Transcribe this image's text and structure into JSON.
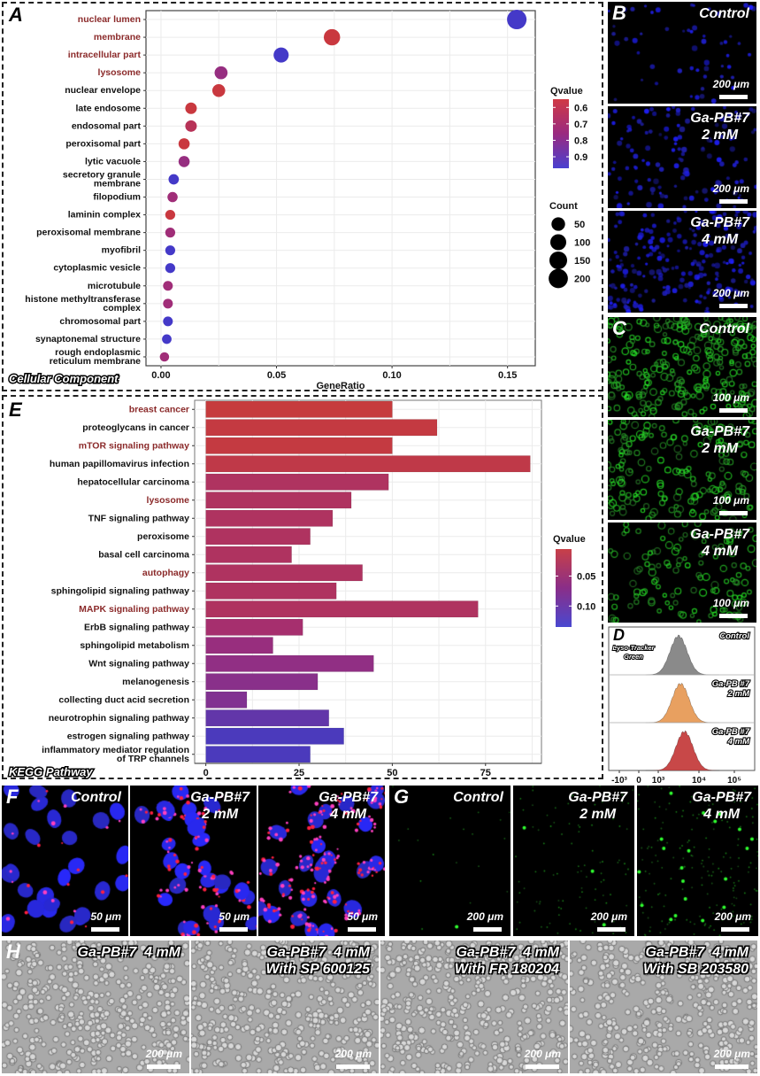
{
  "chart_data": [
    {
      "id": "A",
      "type": "scatter",
      "panel_label": "A",
      "corner_label": "Cellular Component",
      "xlabel": "GeneRatio",
      "ylabel": "",
      "xlim": [
        -0.0065,
        0.162
      ],
      "xticks": [
        0.0,
        0.05,
        0.1,
        0.15
      ],
      "xtick_labels": [
        "0.00",
        "0.05",
        "0.10",
        "0.15"
      ],
      "grid": true,
      "legend_position": "right",
      "color_legend": {
        "title": "Qvalue",
        "ticks": [
          0.6,
          0.7,
          0.8,
          0.9
        ],
        "tick_labels": [
          "0.6",
          "0.7",
          "0.8",
          "0.9"
        ],
        "range": [
          0.55,
          0.97
        ],
        "low_color": "#d03a35",
        "high_color": "#3a3ad0"
      },
      "size_legend": {
        "title": "Count",
        "values": [
          50,
          100,
          150,
          200
        ],
        "labels": [
          "50",
          "100",
          "150",
          "200"
        ]
      },
      "highlight_color": "#8b2a2a",
      "points": [
        {
          "term": "nuclear lumen",
          "gene_ratio": 0.154,
          "qvalue": 0.95,
          "count": 210,
          "highlight": true
        },
        {
          "term": "membrane",
          "gene_ratio": 0.074,
          "qvalue": 0.58,
          "count": 110,
          "highlight": true
        },
        {
          "term": "intracellular part",
          "gene_ratio": 0.052,
          "qvalue": 0.95,
          "count": 80,
          "highlight": true
        },
        {
          "term": "lysosome",
          "gene_ratio": 0.026,
          "qvalue": 0.78,
          "count": 40,
          "highlight": true
        },
        {
          "term": "nuclear envelope",
          "gene_ratio": 0.025,
          "qvalue": 0.58,
          "count": 38,
          "highlight": false
        },
        {
          "term": "late endosome",
          "gene_ratio": 0.013,
          "qvalue": 0.58,
          "count": 20,
          "highlight": false
        },
        {
          "term": "endosomal part",
          "gene_ratio": 0.013,
          "qvalue": 0.66,
          "count": 20,
          "highlight": false
        },
        {
          "term": "peroxisomal part",
          "gene_ratio": 0.01,
          "qvalue": 0.58,
          "count": 16,
          "highlight": false
        },
        {
          "term": "lytic vacuole",
          "gene_ratio": 0.01,
          "qvalue": 0.78,
          "count": 16,
          "highlight": false
        },
        {
          "term": "secretory granule\nmembrane",
          "gene_ratio": 0.0055,
          "qvalue": 0.95,
          "count": 9,
          "highlight": false
        },
        {
          "term": "filopodium",
          "gene_ratio": 0.005,
          "qvalue": 0.76,
          "count": 8,
          "highlight": false
        },
        {
          "term": "laminin complex",
          "gene_ratio": 0.004,
          "qvalue": 0.58,
          "count": 6,
          "highlight": false
        },
        {
          "term": "peroxisomal membrane",
          "gene_ratio": 0.004,
          "qvalue": 0.76,
          "count": 6,
          "highlight": false
        },
        {
          "term": "myofibril",
          "gene_ratio": 0.004,
          "qvalue": 0.95,
          "count": 6,
          "highlight": false
        },
        {
          "term": "cytoplasmic vesicle",
          "gene_ratio": 0.004,
          "qvalue": 0.95,
          "count": 6,
          "highlight": false
        },
        {
          "term": "microtubule",
          "gene_ratio": 0.003,
          "qvalue": 0.76,
          "count": 5,
          "highlight": false
        },
        {
          "term": "histone methyltransferase\ncomplex",
          "gene_ratio": 0.003,
          "qvalue": 0.76,
          "count": 5,
          "highlight": false
        },
        {
          "term": "chromosomal part",
          "gene_ratio": 0.003,
          "qvalue": 0.95,
          "count": 5,
          "highlight": false
        },
        {
          "term": "synaptonemal structure",
          "gene_ratio": 0.0025,
          "qvalue": 0.95,
          "count": 4,
          "highlight": false
        },
        {
          "term": "rough endoplasmic\nreticulum membrane",
          "gene_ratio": 0.0015,
          "qvalue": 0.76,
          "count": 3,
          "highlight": false
        }
      ]
    },
    {
      "id": "E",
      "type": "bar",
      "orientation": "horizontal",
      "panel_label": "E",
      "corner_label": "KEGG Pathway",
      "xlabel": "",
      "ylabel": "",
      "xlim": [
        -3,
        90
      ],
      "xticks": [
        0,
        25,
        50,
        75
      ],
      "xtick_labels": [
        "0",
        "25",
        "50",
        "75"
      ],
      "grid": true,
      "legend_position": "right",
      "color_legend": {
        "title": "Qvalue",
        "ticks": [
          0.05,
          0.1
        ],
        "tick_labels": [
          "0.05",
          "0.10"
        ],
        "range": [
          0.005,
          0.135
        ],
        "low_color": "#c83c3a",
        "high_color": "#3c3cc8"
      },
      "highlight_color": "#8b2a2a",
      "categories": [
        "breast cancer",
        "proteoglycans in cancer",
        "mTOR signaling pathway",
        "human papillomavirus infection",
        "hepatocellular carcinoma",
        "lysosome",
        "TNF signaling pathway",
        "peroxisome",
        "basal cell carcinoma",
        "autophagy",
        "sphingolipid signaling pathway",
        "MAPK signaling pathway",
        "ErbB signaling pathway",
        "sphingolipid metabolism",
        "Wnt signaling pathway",
        "melanogenesis",
        "collecting duct acid secretion",
        "neurotrophin signaling pathway",
        "estrogen signaling pathway",
        "inflammatory mediator regulation\nof TRP channels"
      ],
      "values": [
        50,
        62,
        50,
        87,
        49,
        39,
        34,
        28,
        23,
        42,
        35,
        73,
        26,
        18,
        45,
        30,
        11,
        33,
        37,
        28
      ],
      "qvalues": [
        0.008,
        0.012,
        0.012,
        0.02,
        0.045,
        0.045,
        0.045,
        0.045,
        0.045,
        0.045,
        0.045,
        0.045,
        0.06,
        0.075,
        0.08,
        0.085,
        0.09,
        0.11,
        0.125,
        0.125
      ],
      "highlight": [
        true,
        false,
        true,
        false,
        false,
        true,
        false,
        false,
        false,
        true,
        false,
        true,
        false,
        false,
        false,
        false,
        false,
        false,
        false,
        false
      ]
    },
    {
      "id": "D",
      "type": "area",
      "panel_label": "D",
      "stain_label": "Lyso-Tracker\nGreen",
      "xtick_labels": [
        "-10³",
        "0",
        "10³",
        "10⁴",
        "10⁵"
      ],
      "series": [
        {
          "name": "Control",
          "color": "#8a8a8a",
          "peak_log": 3.25
        },
        {
          "name": "Ga-PB #7\n2 mM",
          "color": "#e8a060",
          "peak_log": 3.3
        },
        {
          "name": "Ga-PB #7\n4 mM",
          "color": "#c84848",
          "peak_log": 3.4
        }
      ]
    }
  ],
  "panels": {
    "B": {
      "letter": "B",
      "images": [
        {
          "label": "Control",
          "scale": "200 μm",
          "density": 0.25
        },
        {
          "label": "Ga-PB#7\n2 mM",
          "scale": "200 μm",
          "density": 0.6
        },
        {
          "label": "Ga-PB#7\n4 mM",
          "scale": "200 μm",
          "density": 1.0
        }
      ]
    },
    "C": {
      "letter": "C",
      "images": [
        {
          "label": "Control",
          "scale": "100 μm",
          "density": 1.0
        },
        {
          "label": "Ga-PB#7\n2 mM",
          "scale": "100 μm",
          "density": 0.7
        },
        {
          "label": "Ga-PB#7\n4 mM",
          "scale": "100 μm",
          "density": 0.45
        }
      ]
    },
    "F": {
      "letter": "F",
      "images": [
        {
          "label": "Control",
          "scale": "50 μm",
          "red": 0.1
        },
        {
          "label": "Ga-PB#7\n2 mM",
          "scale": "50 μm",
          "red": 0.5
        },
        {
          "label": "Ga-PB#7\n4 mM",
          "scale": "50 μm",
          "red": 1.0
        }
      ]
    },
    "G": {
      "letter": "G",
      "images": [
        {
          "label": "Control",
          "scale": "200 μm",
          "density": 0.1
        },
        {
          "label": "Ga-PB#7\n2 mM",
          "scale": "200 μm",
          "density": 0.5
        },
        {
          "label": "Ga-PB#7\n4 mM",
          "scale": "200 μm",
          "density": 1.0
        }
      ]
    },
    "H": {
      "letter": "H",
      "images": [
        {
          "label": "Ga-PB#7  4 mM",
          "scale": "200 μm"
        },
        {
          "label": "Ga-PB#7  4 mM\nWith SP 600125",
          "scale": "200 μm"
        },
        {
          "label": "Ga-PB#7  4 mM\nWith FR 180204",
          "scale": "200 μm"
        },
        {
          "label": "Ga-PB#7  4 mM\nWith SB 203580",
          "scale": "200 μm"
        }
      ]
    }
  }
}
